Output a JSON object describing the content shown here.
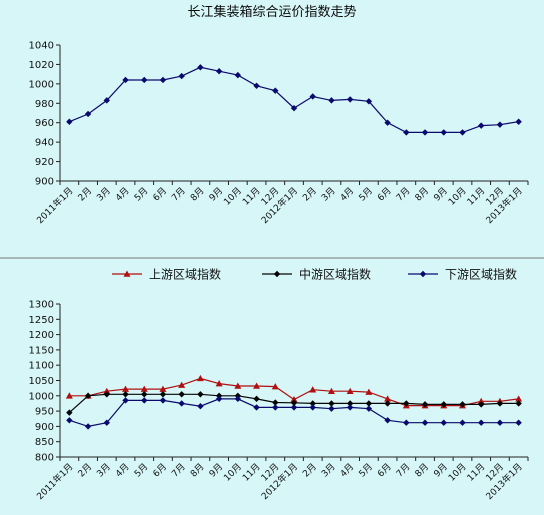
{
  "chart_data": [
    {
      "type": "line",
      "title": "长江集装箱综合运价指数走势",
      "xlabel": "",
      "ylabel": "",
      "ylim": [
        900,
        1040
      ],
      "yticks": [
        900,
        920,
        940,
        960,
        980,
        1000,
        1020,
        1040
      ],
      "grid": false,
      "categories": [
        "2011年1月",
        "2月",
        "3月",
        "4月",
        "5月",
        "6月",
        "7月",
        "8月",
        "9月",
        "10月",
        "11月",
        "12月",
        "2012年1月",
        "2月",
        "3月",
        "4月",
        "5月",
        "6月",
        "7月",
        "8月",
        "9月",
        "10月",
        "11月",
        "12月",
        "2013年1月"
      ],
      "series": [
        {
          "values": [
            961,
            969,
            983,
            1004,
            1004,
            1004,
            1008,
            1017,
            1013,
            1009,
            998,
            993,
            975,
            987,
            983,
            984,
            982,
            960,
            950,
            950,
            950,
            950,
            957,
            958,
            961
          ],
          "color": "#0a0a6e"
        }
      ]
    },
    {
      "type": "line",
      "title": "",
      "xlabel": "",
      "ylabel": "",
      "ylim": [
        800,
        1300
      ],
      "yticks": [
        800,
        850,
        900,
        950,
        1000,
        1050,
        1100,
        1150,
        1200,
        1250,
        1300
      ],
      "grid": false,
      "legend_position": "top",
      "categories": [
        "2011年1月",
        "2月",
        "3月",
        "4月",
        "5月",
        "6月",
        "7月",
        "8月",
        "9月",
        "10月",
        "11月",
        "12月",
        "2012年1月",
        "2月",
        "3月",
        "4月",
        "5月",
        "6月",
        "7月",
        "8月",
        "9月",
        "10月",
        "11月",
        "12月",
        "2013年1月"
      ],
      "series": [
        {
          "name": "上游区域指数",
          "marker": "triangle",
          "color": "#b01010",
          "values": [
            1000,
            1000,
            1015,
            1022,
            1022,
            1022,
            1035,
            1057,
            1040,
            1032,
            1032,
            1030,
            988,
            1020,
            1015,
            1015,
            1012,
            990,
            968,
            968,
            968,
            968,
            982,
            982,
            990
          ]
        },
        {
          "name": "中游区域指数",
          "marker": "diamond",
          "color": "#050505",
          "values": [
            945,
            1000,
            1005,
            1005,
            1005,
            1005,
            1005,
            1005,
            1000,
            1000,
            990,
            978,
            977,
            975,
            975,
            975,
            975,
            975,
            975,
            972,
            972,
            972,
            972,
            975,
            975
          ]
        },
        {
          "name": "下游区域指数",
          "marker": "diamond",
          "color": "#0a0a6e",
          "values": [
            920,
            900,
            912,
            985,
            985,
            985,
            975,
            966,
            990,
            990,
            962,
            962,
            962,
            962,
            958,
            962,
            958,
            920,
            912,
            912,
            912,
            912,
            912,
            912,
            912
          ]
        }
      ]
    }
  ]
}
